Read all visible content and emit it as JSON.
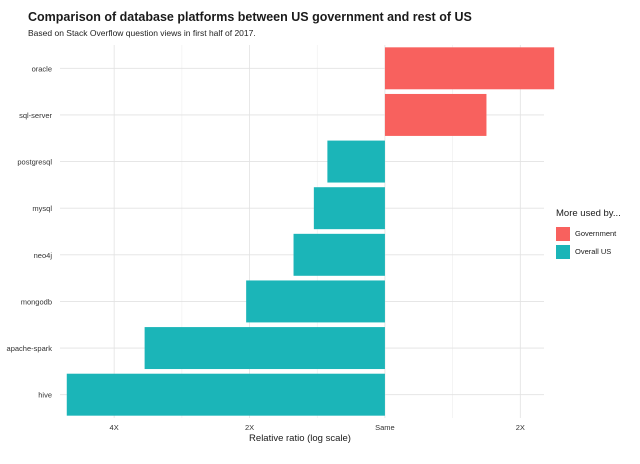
{
  "chart_data": {
    "type": "bar",
    "orientation": "horizontal",
    "title": "Comparison of database platforms between US government and rest of US",
    "subtitle": "Based on Stack Overflow question views in first half of 2017.",
    "xlabel": "Relative ratio (log scale)",
    "ylabel": "",
    "x_scale": "log2",
    "xlim": [
      -4.8,
      2.35
    ],
    "x_ticks": [
      {
        "label": "4X",
        "value": -4
      },
      {
        "label": "2X",
        "value": -2
      },
      {
        "label": "Same",
        "value": 0
      },
      {
        "label": "2X",
        "value": 2
      }
    ],
    "categories": [
      "oracle",
      "sql-server",
      "postgresql",
      "mysql",
      "neo4j",
      "mongodb",
      "apache-spark",
      "hive"
    ],
    "values": [
      2.5,
      1.5,
      -0.85,
      -1.05,
      -1.35,
      -2.05,
      -3.55,
      -4.7
    ],
    "groups": [
      "Government",
      "Government",
      "Overall US",
      "Overall US",
      "Overall US",
      "Overall US",
      "Overall US",
      "Overall US"
    ],
    "grid": true,
    "legend": {
      "title": "More used by...",
      "position": "right",
      "items": [
        {
          "label": "Government",
          "color": "#f8615e"
        },
        {
          "label": "Overall US",
          "color": "#1bb5b8"
        }
      ]
    }
  }
}
